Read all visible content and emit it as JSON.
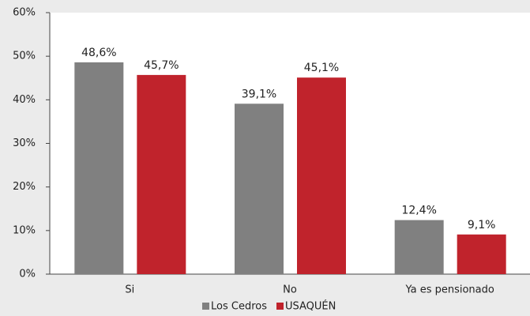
{
  "chart_data": {
    "type": "bar",
    "categories": [
      "Si",
      "No",
      "Ya es pensionado"
    ],
    "series": [
      {
        "name": "Los Cedros",
        "color": "#808080",
        "values": [
          48.6,
          39.1,
          12.4
        ],
        "value_labels": [
          "48,6%",
          "39,1%",
          "12,4%"
        ]
      },
      {
        "name": "USAQUÉN",
        "color": "#c0232c",
        "values": [
          45.7,
          45.1,
          9.1
        ],
        "value_labels": [
          "45,7%",
          "45,1%",
          "9,1%"
        ]
      }
    ],
    "ylim": [
      0,
      60
    ],
    "yticks": [
      {
        "value": 0,
        "label": "0%"
      },
      {
        "value": 10,
        "label": "10%"
      },
      {
        "value": 20,
        "label": "20%"
      },
      {
        "value": 30,
        "label": "30%"
      },
      {
        "value": 40,
        "label": "40%"
      },
      {
        "value": 50,
        "label": "50%"
      },
      {
        "value": 60,
        "label": "60%"
      }
    ],
    "legend": "bottom"
  }
}
